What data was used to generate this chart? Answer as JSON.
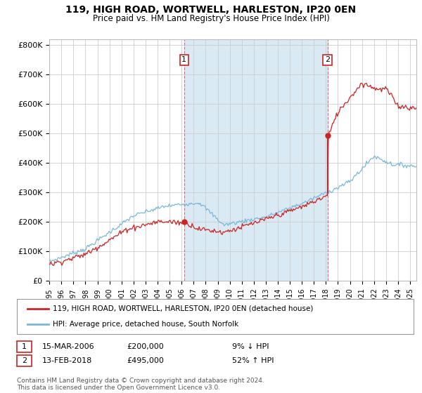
{
  "title1": "119, HIGH ROAD, WORTWELL, HARLESTON, IP20 0EN",
  "title2": "Price paid vs. HM Land Registry's House Price Index (HPI)",
  "ylabel_ticks": [
    "£0",
    "£100K",
    "£200K",
    "£300K",
    "£400K",
    "£500K",
    "£600K",
    "£700K",
    "£800K"
  ],
  "ytick_vals": [
    0,
    100000,
    200000,
    300000,
    400000,
    500000,
    600000,
    700000,
    800000
  ],
  "ylim": [
    0,
    820000
  ],
  "sale1_date": "15-MAR-2006",
  "sale1_price": 200000,
  "sale2_date": "13-FEB-2018",
  "sale2_price": 495000,
  "sale1_pct": "9% ↓ HPI",
  "sale2_pct": "52% ↑ HPI",
  "legend_line1": "119, HIGH ROAD, WORTWELL, HARLESTON, IP20 0EN (detached house)",
  "legend_line2": "HPI: Average price, detached house, South Norfolk",
  "footer": "Contains HM Land Registry data © Crown copyright and database right 2024.\nThis data is licensed under the Open Government Licence v3.0.",
  "hpi_color": "#7ab8d9",
  "price_color": "#cc2222",
  "bg_between_color": "#daeaf5",
  "grid_color": "#cccccc",
  "sale1_x": 2006.208,
  "sale2_x": 2018.125
}
